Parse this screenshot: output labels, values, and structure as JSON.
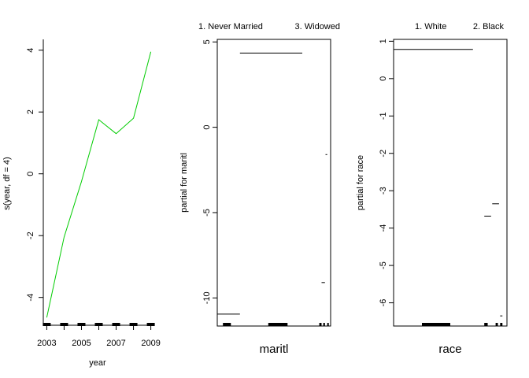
{
  "chart_data": [
    {
      "type": "line",
      "title": "",
      "xlabel": "year",
      "ylabel": "s(year, df = 4)",
      "xlim": [
        2002.8,
        2009.2
      ],
      "ylim": [
        -4.9,
        4.35
      ],
      "xticks": [
        "2003",
        "2005",
        "2007",
        "2009"
      ],
      "yticks": [
        "-4",
        "-2",
        "0",
        "2",
        "4"
      ],
      "series": [
        {
          "color": "#00cc00",
          "x": [
            2003,
            2004,
            2005,
            2006,
            2007,
            2008,
            2009
          ],
          "y": [
            -4.65,
            -2.05,
            -0.25,
            1.75,
            1.3,
            1.8,
            3.95
          ]
        }
      ],
      "rug_x": [
        2003,
        2004,
        2005,
        2006,
        2007,
        2008,
        2009
      ]
    },
    {
      "type": "step",
      "title": "",
      "xlabel": "maritl",
      "ylabel": "partial for maritl",
      "ylim": [
        -11.6,
        5.15
      ],
      "level_labels": [
        "1. Never Married",
        "3. Widowed"
      ],
      "yticks": [
        "-10",
        "-5",
        "0",
        "5"
      ],
      "levels": [
        {
          "from": 0.0,
          "to": 0.2,
          "value": -10.95
        },
        {
          "from": 0.2,
          "to": 0.75,
          "value": 4.35
        },
        {
          "from": 0.92,
          "to": 0.95,
          "value": -9.1
        },
        {
          "from": 0.955,
          "to": 0.97,
          "value": -1.6
        }
      ],
      "rug": [
        [
          0.05,
          0.12
        ],
        [
          0.45,
          0.62
        ],
        [
          0.9,
          0.92
        ],
        [
          0.935,
          0.95
        ],
        [
          0.97,
          0.98
        ]
      ]
    },
    {
      "type": "step",
      "title": "",
      "xlabel": "race",
      "ylabel": "partial for race",
      "ylim": [
        -6.6,
        1.05
      ],
      "level_labels": [
        "1. White",
        "2. Black"
      ],
      "yticks": [
        "1",
        "0",
        "-1",
        "-2",
        "-3",
        "-4",
        "-5",
        "-6"
      ],
      "levels": [
        {
          "from": 0.0,
          "to": 0.7,
          "value": 0.78
        },
        {
          "from": 0.8,
          "to": 0.86,
          "value": -3.68
        },
        {
          "from": 0.87,
          "to": 0.93,
          "value": -3.35
        },
        {
          "from": 0.94,
          "to": 0.96,
          "value": -6.35
        }
      ],
      "rug": [
        [
          0.25,
          0.5
        ],
        [
          0.8,
          0.83
        ],
        [
          0.9,
          0.92
        ],
        [
          0.94,
          0.96
        ]
      ]
    }
  ]
}
